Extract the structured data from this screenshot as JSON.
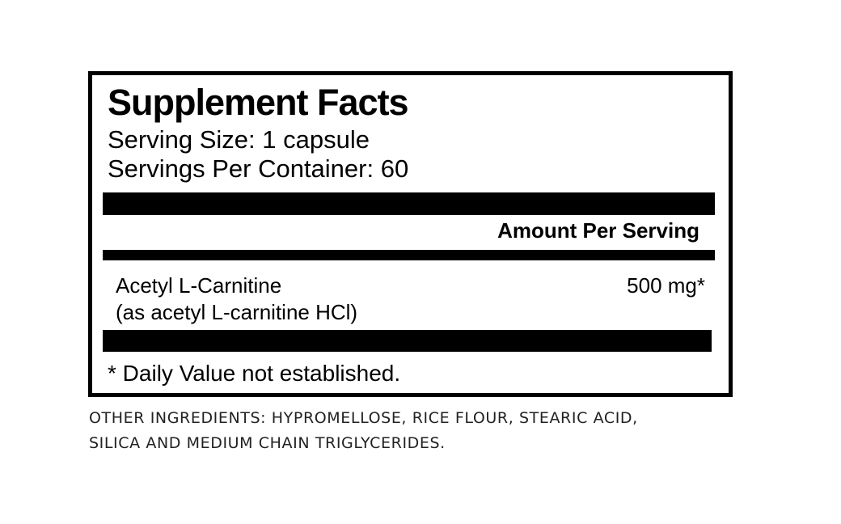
{
  "label": {
    "title": "Supplement Facts",
    "serving_size": "Serving Size: 1 capsule",
    "servings_per_container": "Servings Per Container: 60",
    "amount_header": "Amount Per Serving",
    "ingredients": [
      {
        "name": "Acetyl L-Carnitine",
        "source": "(as acetyl L-carnitine HCl)",
        "amount": "500 mg*"
      }
    ],
    "footnote": "* Daily Value not established."
  },
  "other_ingredients": {
    "line1": "OTHER INGREDIENTS: HYPROMELLOSE, RICE FLOUR, STEARIC ACID,",
    "line2": "SILICA AND MEDIUM CHAIN TRIGLYCERIDES."
  }
}
